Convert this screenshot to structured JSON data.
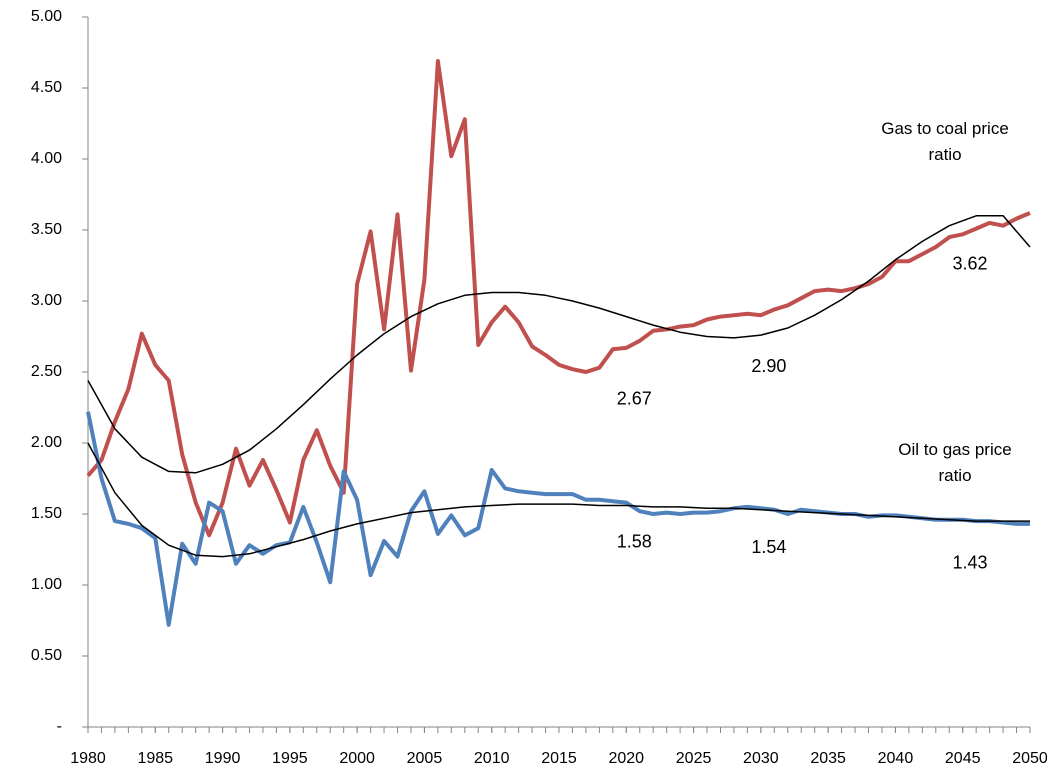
{
  "chart_data": {
    "type": "line",
    "x": [
      1980,
      1981,
      1982,
      1983,
      1984,
      1985,
      1986,
      1987,
      1988,
      1989,
      1990,
      1991,
      1992,
      1993,
      1994,
      1995,
      1996,
      1997,
      1998,
      1999,
      2000,
      2001,
      2002,
      2003,
      2004,
      2005,
      2006,
      2007,
      2008,
      2009,
      2010,
      2011,
      2012,
      2013,
      2014,
      2015,
      2016,
      2017,
      2018,
      2019,
      2020,
      2021,
      2022,
      2023,
      2024,
      2025,
      2026,
      2027,
      2028,
      2029,
      2030,
      2031,
      2032,
      2033,
      2034,
      2035,
      2036,
      2037,
      2038,
      2039,
      2040,
      2041,
      2042,
      2043,
      2044,
      2045,
      2046,
      2047,
      2048,
      2049,
      2050
    ],
    "series": [
      {
        "name": "Gas to coal price ratio",
        "color": "#c0504d",
        "values": [
          1.77,
          1.88,
          2.15,
          2.38,
          2.77,
          2.55,
          2.44,
          1.92,
          1.58,
          1.35,
          1.58,
          1.96,
          1.7,
          1.88,
          1.67,
          1.44,
          1.88,
          2.09,
          1.84,
          1.65,
          3.12,
          3.49,
          2.8,
          3.61,
          2.51,
          3.15,
          4.69,
          4.02,
          4.28,
          2.69,
          2.85,
          2.96,
          2.85,
          2.68,
          2.62,
          2.55,
          2.52,
          2.5,
          2.53,
          2.66,
          2.67,
          2.72,
          2.79,
          2.8,
          2.82,
          2.83,
          2.87,
          2.89,
          2.9,
          2.91,
          2.9,
          2.94,
          2.97,
          3.02,
          3.07,
          3.08,
          3.07,
          3.09,
          3.12,
          3.17,
          3.28,
          3.28,
          3.33,
          3.38,
          3.45,
          3.47,
          3.51,
          3.55,
          3.53,
          3.58,
          3.62
        ],
        "value_labels": [
          null,
          null,
          null,
          null,
          null,
          null,
          null,
          null,
          null,
          null,
          null,
          null,
          null,
          null,
          null,
          null,
          null,
          null,
          null,
          null,
          null,
          null,
          null,
          null,
          null,
          null,
          null,
          null,
          null,
          null,
          null,
          null,
          null,
          null,
          null,
          null,
          null,
          null,
          null,
          null,
          "2.67",
          null,
          null,
          null,
          null,
          null,
          null,
          null,
          null,
          null,
          "2.90",
          null,
          null,
          null,
          null,
          null,
          null,
          null,
          null,
          null,
          null,
          null,
          null,
          null,
          null,
          null,
          null,
          null,
          null,
          null,
          "3.62"
        ]
      },
      {
        "name": "Oil to gas price ratio",
        "color": "#4f81bd",
        "values": [
          2.22,
          1.75,
          1.45,
          1.43,
          1.4,
          1.33,
          0.72,
          1.29,
          1.15,
          1.58,
          1.52,
          1.15,
          1.28,
          1.22,
          1.28,
          1.3,
          1.55,
          1.3,
          1.02,
          1.8,
          1.6,
          1.07,
          1.31,
          1.2,
          1.52,
          1.66,
          1.36,
          1.49,
          1.35,
          1.4,
          1.81,
          1.68,
          1.66,
          1.65,
          1.64,
          1.64,
          1.64,
          1.6,
          1.6,
          1.59,
          1.58,
          1.52,
          1.5,
          1.51,
          1.5,
          1.51,
          1.51,
          1.52,
          1.54,
          1.55,
          1.54,
          1.53,
          1.5,
          1.53,
          1.52,
          1.51,
          1.5,
          1.5,
          1.48,
          1.49,
          1.49,
          1.48,
          1.47,
          1.46,
          1.46,
          1.46,
          1.45,
          1.45,
          1.44,
          1.43,
          1.43
        ],
        "value_labels": [
          null,
          null,
          null,
          null,
          null,
          null,
          null,
          null,
          null,
          null,
          null,
          null,
          null,
          null,
          null,
          null,
          null,
          null,
          null,
          null,
          null,
          null,
          null,
          null,
          null,
          null,
          null,
          null,
          null,
          null,
          null,
          null,
          null,
          null,
          null,
          null,
          null,
          null,
          null,
          null,
          "1.58",
          null,
          null,
          null,
          null,
          null,
          null,
          null,
          null,
          null,
          "1.54",
          null,
          null,
          null,
          null,
          null,
          null,
          null,
          null,
          null,
          null,
          null,
          null,
          null,
          null,
          null,
          null,
          null,
          null,
          null,
          "1.43"
        ]
      }
    ],
    "trendlines": [
      {
        "color": "#000000",
        "x": [
          1980,
          1982,
          1984,
          1986,
          1988,
          1990,
          1992,
          1994,
          1996,
          1998,
          2000,
          2002,
          2004,
          2006,
          2008,
          2010,
          2012,
          2014,
          2016,
          2018,
          2020,
          2022,
          2024,
          2026,
          2028,
          2030,
          2032,
          2034,
          2036,
          2038,
          2040,
          2042,
          2044,
          2046,
          2048,
          2050
        ],
        "values": [
          2.44,
          2.1,
          1.9,
          1.8,
          1.79,
          1.85,
          1.95,
          2.1,
          2.27,
          2.45,
          2.62,
          2.77,
          2.89,
          2.98,
          3.04,
          3.06,
          3.06,
          3.04,
          3.0,
          2.95,
          2.89,
          2.83,
          2.78,
          2.75,
          2.74,
          2.76,
          2.81,
          2.9,
          3.01,
          3.14,
          3.29,
          3.42,
          3.53,
          3.6,
          3.6,
          3.38
        ]
      },
      {
        "color": "#000000",
        "x": [
          1980,
          1982,
          1984,
          1986,
          1988,
          1990,
          1992,
          1994,
          1996,
          1998,
          2000,
          2002,
          2004,
          2006,
          2008,
          2010,
          2012,
          2014,
          2016,
          2018,
          2020,
          2022,
          2024,
          2026,
          2028,
          2030,
          2032,
          2034,
          2036,
          2038,
          2040,
          2042,
          2044,
          2046,
          2048,
          2050
        ],
        "values": [
          2.0,
          1.65,
          1.42,
          1.28,
          1.21,
          1.2,
          1.22,
          1.27,
          1.32,
          1.38,
          1.43,
          1.47,
          1.51,
          1.53,
          1.55,
          1.56,
          1.57,
          1.57,
          1.57,
          1.56,
          1.56,
          1.55,
          1.55,
          1.54,
          1.54,
          1.53,
          1.52,
          1.51,
          1.5,
          1.49,
          1.48,
          1.47,
          1.46,
          1.45,
          1.45,
          1.45
        ]
      }
    ],
    "xlim": [
      1980,
      2050
    ],
    "xticks": [
      1980,
      1985,
      1990,
      1995,
      2000,
      2005,
      2010,
      2015,
      2020,
      2025,
      2030,
      2035,
      2040,
      2045,
      2050
    ],
    "ylim": [
      0,
      5
    ],
    "yticks": [
      {
        "value": 0,
        "label": "-"
      },
      {
        "value": 0.5,
        "label": "0.50"
      },
      {
        "value": 1,
        "label": "1.00"
      },
      {
        "value": 1.5,
        "label": "1.50"
      },
      {
        "value": 2,
        "label": "2.00"
      },
      {
        "value": 2.5,
        "label": "2.50"
      },
      {
        "value": 3,
        "label": "3.00"
      },
      {
        "value": 3.5,
        "label": "3.50"
      },
      {
        "value": 4,
        "label": "4.00"
      },
      {
        "value": 4.5,
        "label": "4.50"
      },
      {
        "value": 5,
        "label": "5.00"
      }
    ],
    "grid": false
  }
}
